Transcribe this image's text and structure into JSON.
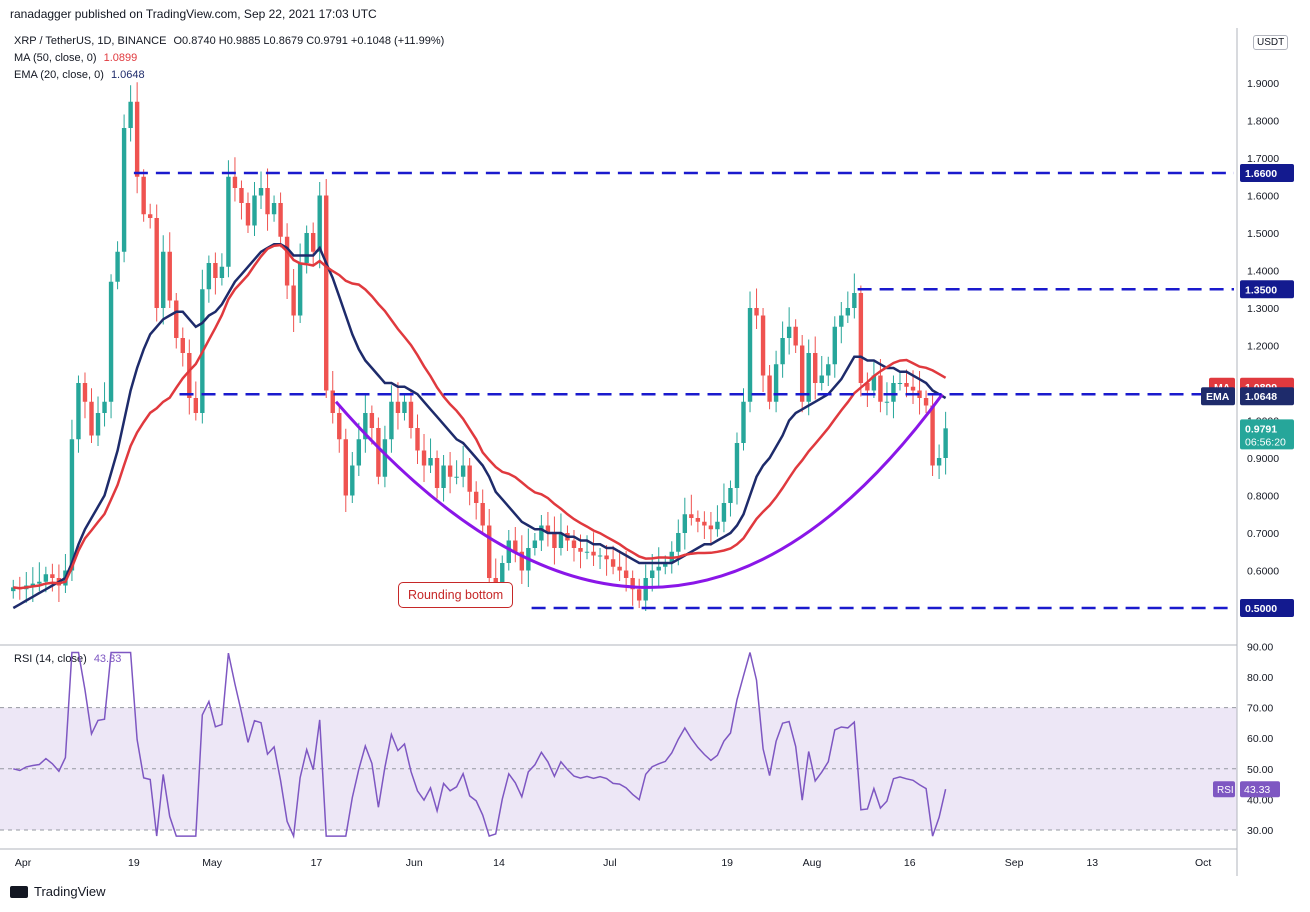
{
  "header": {
    "published": "ranadagger published on TradingView.com, Sep 22, 2021 17:03 UTC"
  },
  "legend": {
    "symbol": "XRP / TetherUS, 1D, BINANCE",
    "o": "O0.8740",
    "h": "H0.9885",
    "l": "L0.8679",
    "c": "C0.9791",
    "chg": "+0.1048 (+11.99%)",
    "ma_label": "MA (50, close, 0)",
    "ma_value": "1.0899",
    "ema_label": "EMA (20, close, 0)",
    "ema_value": "1.0648",
    "rsi_label": "RSI (14, close)",
    "rsi_value": "43.33"
  },
  "currency_badge": "USDT",
  "annotation": "Rounding bottom",
  "footer": {
    "brand": "TradingView"
  },
  "colors": {
    "up": "#26a69a",
    "down": "#ef5350",
    "ema": "#1e2b6b",
    "ma": "#e0393e",
    "level": "#1a1acd",
    "curve": "#8a16e8",
    "rsi": "#7e57c2",
    "rsi_band": "#ede7f6"
  },
  "chart_data": {
    "type": "candlestick",
    "ylim": [
      0.45,
      2.0
    ],
    "price_ticks": [
      "1.9000",
      "1.8000",
      "1.7000",
      "1.6000",
      "1.5000",
      "1.4000",
      "1.3000",
      "1.2000",
      "1.1000",
      "1.0000",
      "0.9000",
      "0.8000",
      "0.7000",
      "0.6000",
      "0.5000"
    ],
    "tick_values": [
      1.9,
      1.8,
      1.7,
      1.6,
      1.5,
      1.4,
      1.3,
      1.2,
      1.1,
      1.0,
      0.9,
      0.8,
      0.7,
      0.6,
      0.5
    ],
    "x_labels": [
      {
        "label": "Apr",
        "day": 2
      },
      {
        "label": "19",
        "day": 19
      },
      {
        "label": "May",
        "day": 31
      },
      {
        "label": "17",
        "day": 47
      },
      {
        "label": "Jun",
        "day": 62
      },
      {
        "label": "14",
        "day": 75
      },
      {
        "label": "Jul",
        "day": 92
      },
      {
        "label": "19",
        "day": 110
      },
      {
        "label": "Aug",
        "day": 123
      },
      {
        "label": "16",
        "day": 138
      },
      {
        "label": "Sep",
        "day": 154
      },
      {
        "label": "13",
        "day": 166
      },
      {
        "label": "Oct",
        "day": 183
      }
    ],
    "levels": [
      {
        "value": 1.66,
        "label": "1.6600",
        "from_day": 19
      },
      {
        "value": 1.35,
        "label": "1.3500",
        "from_day": 130
      },
      {
        "value": 1.07,
        "label": "1.0700",
        "from_day": 26
      },
      {
        "value": 0.5,
        "label": "0.5000",
        "from_day": 80
      }
    ],
    "badges": [
      {
        "label": "MA",
        "value": "1.0899",
        "at": 1.0899,
        "color": "#e0393e"
      },
      {
        "label": "EMA",
        "value": "1.0648",
        "at": 1.0648,
        "color": "#1e2b6b"
      },
      {
        "label": "",
        "value": "0.9791",
        "at": 0.9791,
        "color": "#26a69a",
        "extra": "06:56:20"
      }
    ],
    "candles_close": [
      0.555,
      0.55,
      0.56,
      0.565,
      0.57,
      0.59,
      0.58,
      0.56,
      0.6,
      0.95,
      1.1,
      1.05,
      0.96,
      1.02,
      1.05,
      1.37,
      1.45,
      1.78,
      1.85,
      1.65,
      1.55,
      1.54,
      1.3,
      1.45,
      1.32,
      1.22,
      1.18,
      1.06,
      1.02,
      1.35,
      1.42,
      1.38,
      1.41,
      1.65,
      1.62,
      1.58,
      1.52,
      1.6,
      1.62,
      1.55,
      1.58,
      1.49,
      1.36,
      1.28,
      1.42,
      1.5,
      1.45,
      1.6,
      1.08,
      1.02,
      0.95,
      0.8,
      0.88,
      0.95,
      1.02,
      0.98,
      0.85,
      0.95,
      1.05,
      1.02,
      1.05,
      0.98,
      0.92,
      0.88,
      0.9,
      0.82,
      0.88,
      0.85,
      0.85,
      0.88,
      0.81,
      0.78,
      0.72,
      0.58,
      0.55,
      0.62,
      0.68,
      0.65,
      0.6,
      0.66,
      0.68,
      0.72,
      0.7,
      0.66,
      0.7,
      0.68,
      0.66,
      0.65,
      0.65,
      0.64,
      0.64,
      0.63,
      0.61,
      0.6,
      0.58,
      0.55,
      0.52,
      0.58,
      0.6,
      0.61,
      0.62,
      0.65,
      0.7,
      0.75,
      0.74,
      0.73,
      0.72,
      0.71,
      0.73,
      0.78,
      0.82,
      0.94,
      1.05,
      1.3,
      1.28,
      1.12,
      1.05,
      1.15,
      1.22,
      1.25,
      1.2,
      1.05,
      1.18,
      1.1,
      1.12,
      1.15,
      1.25,
      1.28,
      1.3,
      1.34,
      1.1,
      1.08,
      1.12,
      1.05,
      1.05,
      1.1,
      1.1,
      1.09,
      1.08,
      1.06,
      1.04,
      0.88,
      0.9,
      0.9791
    ],
    "ema20": [
      0.5,
      0.51,
      0.52,
      0.53,
      0.54,
      0.55,
      0.56,
      0.57,
      0.58,
      0.62,
      0.67,
      0.71,
      0.74,
      0.77,
      0.8,
      0.86,
      0.92,
      1.0,
      1.08,
      1.14,
      1.19,
      1.23,
      1.25,
      1.27,
      1.28,
      1.29,
      1.29,
      1.27,
      1.25,
      1.26,
      1.28,
      1.29,
      1.31,
      1.34,
      1.37,
      1.39,
      1.41,
      1.43,
      1.45,
      1.46,
      1.47,
      1.47,
      1.46,
      1.44,
      1.44,
      1.44,
      1.44,
      1.46,
      1.42,
      1.38,
      1.33,
      1.28,
      1.23,
      1.19,
      1.16,
      1.14,
      1.12,
      1.1,
      1.1,
      1.09,
      1.09,
      1.08,
      1.07,
      1.05,
      1.03,
      1.01,
      0.99,
      0.97,
      0.95,
      0.94,
      0.92,
      0.9,
      0.88,
      0.85,
      0.81,
      0.79,
      0.77,
      0.75,
      0.73,
      0.72,
      0.71,
      0.71,
      0.7,
      0.7,
      0.7,
      0.69,
      0.69,
      0.68,
      0.68,
      0.67,
      0.67,
      0.66,
      0.66,
      0.65,
      0.64,
      0.63,
      0.62,
      0.62,
      0.62,
      0.62,
      0.62,
      0.62,
      0.63,
      0.64,
      0.65,
      0.66,
      0.67,
      0.67,
      0.68,
      0.69,
      0.7,
      0.72,
      0.75,
      0.8,
      0.85,
      0.88,
      0.9,
      0.93,
      0.96,
      1.0,
      1.02,
      1.03,
      1.04,
      1.05,
      1.06,
      1.07,
      1.09,
      1.11,
      1.14,
      1.17,
      1.17,
      1.16,
      1.16,
      1.15,
      1.14,
      1.14,
      1.13,
      1.13,
      1.12,
      1.11,
      1.1,
      1.08,
      1.07,
      1.06
    ]
  }
}
